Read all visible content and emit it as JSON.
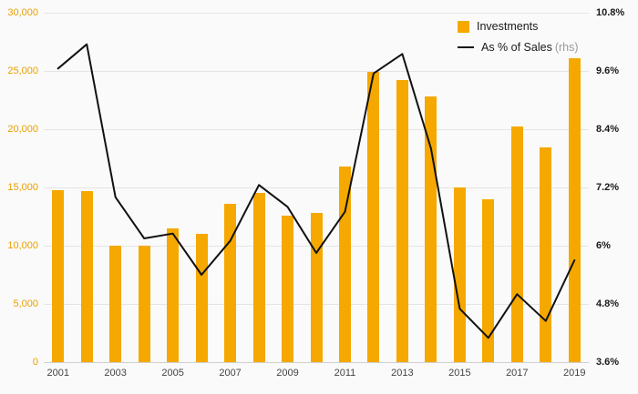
{
  "chart_data": {
    "type": "bar",
    "categories": [
      "2001",
      "2002",
      "2003",
      "2004",
      "2005",
      "2006",
      "2007",
      "2008",
      "2009",
      "2010",
      "2011",
      "2012",
      "2013",
      "2014",
      "2015",
      "2016",
      "2017",
      "2018",
      "2019"
    ],
    "series": [
      {
        "name": "Investments",
        "type": "bar",
        "axis": "left",
        "color": "#f5a800",
        "values": [
          14800,
          14700,
          10000,
          10000,
          11500,
          11000,
          13600,
          14500,
          12600,
          12800,
          16800,
          24900,
          24200,
          22800,
          15000,
          14000,
          20200,
          18400,
          26100
        ]
      },
      {
        "name": "As % of Sales",
        "type": "line",
        "axis": "right",
        "color": "#111111",
        "values": [
          9.65,
          10.15,
          7.0,
          6.15,
          6.25,
          5.4,
          6.1,
          7.25,
          6.8,
          5.85,
          6.7,
          9.55,
          9.95,
          8.0,
          4.7,
          4.1,
          5.0,
          4.45,
          5.7
        ]
      }
    ],
    "left_axis": {
      "min": 0,
      "max": 30000,
      "tick_labels": [
        "0",
        "5,000",
        "10,000",
        "15,000",
        "20,000",
        "25,000",
        "30,000"
      ]
    },
    "right_axis": {
      "min": 3.6,
      "max": 10.8,
      "tick_labels": [
        "3.6%",
        "4.8%",
        "6%",
        "7.2%",
        "8.4%",
        "9.6%",
        "10.8%"
      ]
    },
    "x_tick_labels": [
      "2001",
      "2003",
      "2005",
      "2007",
      "2009",
      "2011",
      "2013",
      "2015",
      "2017",
      "2019"
    ],
    "legend": [
      {
        "label": "Investments",
        "suffix": ""
      },
      {
        "label": "As % of Sales",
        "suffix": "(rhs)"
      }
    ],
    "grid": "horizontal",
    "legend_position": "top-right"
  }
}
